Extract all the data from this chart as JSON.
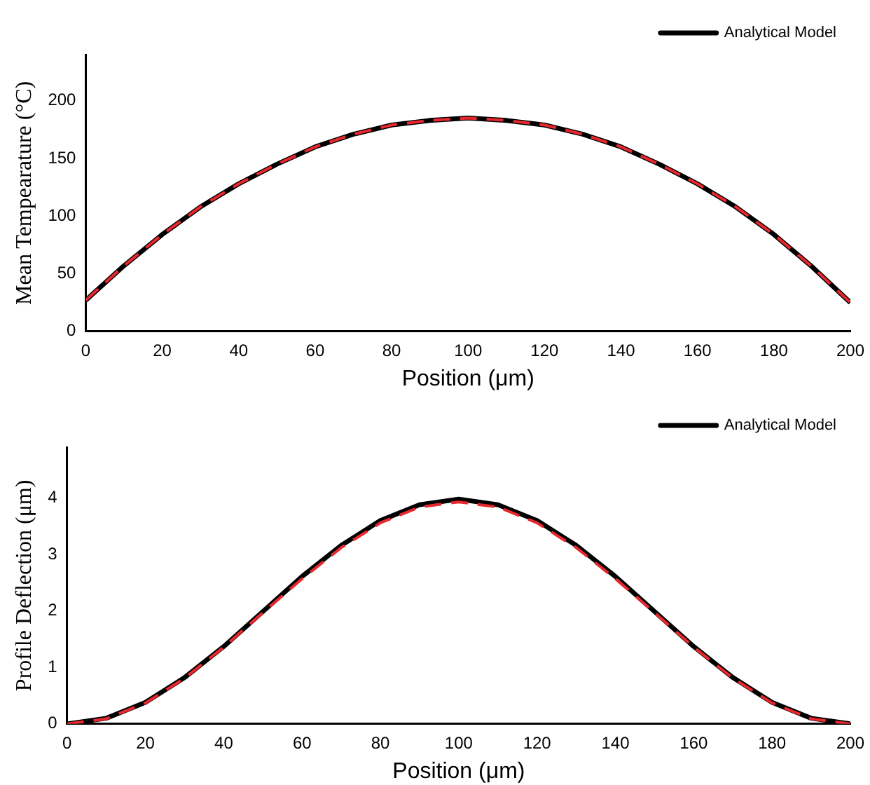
{
  "chart_data": [
    {
      "type": "line",
      "xlabel": "Position (μm)",
      "ylabel": "Mean Tempearature (°C)",
      "xlim": [
        0,
        200
      ],
      "xticks": [
        0,
        20,
        40,
        60,
        80,
        100,
        120,
        140,
        160,
        180,
        200
      ],
      "ylim": [
        0,
        240
      ],
      "yticks": [
        0,
        50,
        100,
        150,
        200
      ],
      "grid": false,
      "legend": "top right",
      "marker": "none",
      "x": [
        0,
        10,
        20,
        30,
        40,
        50,
        60,
        70,
        80,
        90,
        100,
        110,
        120,
        130,
        140,
        150,
        160,
        170,
        180,
        190,
        200
      ],
      "series": [
        {
          "color": "#e8282e",
          "line_style": "dashed",
          "values": [
            27,
            57,
            84,
            108,
            128,
            145,
            160,
            171,
            179,
            183,
            185,
            183,
            179,
            171,
            160,
            145,
            128,
            108,
            84,
            56,
            25
          ]
        },
        {
          "name": "Analytical Model",
          "color": "#000000",
          "line_style": "solid",
          "values": [
            27,
            57,
            84,
            108,
            128,
            145,
            160,
            171,
            179,
            183,
            185,
            183,
            179,
            171,
            160,
            145,
            128,
            108,
            84,
            56,
            25
          ]
        }
      ]
    },
    {
      "type": "line",
      "xlabel": "Position (μm)",
      "ylabel": "Profile Deflection (μm)",
      "xlim": [
        0,
        200
      ],
      "xticks": [
        0,
        20,
        40,
        60,
        80,
        100,
        120,
        140,
        160,
        180,
        200
      ],
      "ylim": [
        0,
        4.9
      ],
      "yticks": [
        0,
        1,
        2,
        3,
        4
      ],
      "grid": false,
      "legend": "top right",
      "marker": "none",
      "x": [
        0,
        10,
        20,
        30,
        40,
        50,
        60,
        70,
        80,
        90,
        100,
        110,
        120,
        130,
        140,
        150,
        160,
        170,
        180,
        190,
        200
      ],
      "series": [
        {
          "color": "#e8282e",
          "line_style": "dashed",
          "values": [
            0,
            0.09,
            0.37,
            0.81,
            1.36,
            1.97,
            2.57,
            3.12,
            3.56,
            3.84,
            3.93,
            3.84,
            3.56,
            3.12,
            2.57,
            1.97,
            1.36,
            0.81,
            0.37,
            0.09,
            0
          ]
        },
        {
          "name": "Analytical Model",
          "color": "#000000",
          "line_style": "solid",
          "values": [
            0,
            0.1,
            0.38,
            0.82,
            1.37,
            1.99,
            2.61,
            3.16,
            3.6,
            3.88,
            3.98,
            3.88,
            3.6,
            3.16,
            2.61,
            1.99,
            1.37,
            0.82,
            0.38,
            0.1,
            0
          ]
        }
      ]
    }
  ]
}
